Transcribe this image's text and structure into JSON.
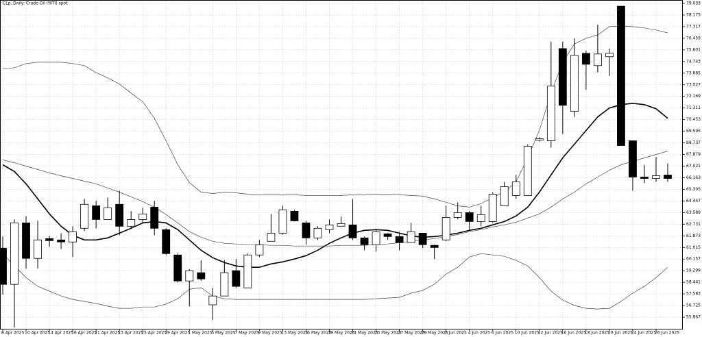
{
  "chart_data": {
    "type": "candlestick",
    "title": "CLp, Daily:  Crude Oil (WTI) spot",
    "categories": [
      "8 Apr 2025",
      null,
      "10 Apr 2025",
      null,
      "14 Apr 2025",
      null,
      "16 Apr 2025",
      null,
      "21 Apr 2025",
      null,
      "23 Apr 2025",
      null,
      "25 Apr 2025",
      null,
      "29 Apr 2025",
      null,
      "1 May 2025",
      null,
      "5 May 2025",
      null,
      "7 May 2025",
      null,
      "9 May 2025",
      null,
      "13 May 2025",
      null,
      "15 May 2025",
      null,
      "19 May 2025",
      null,
      "21 May 2025",
      null,
      "23 May 2025",
      null,
      "27 May 2025",
      null,
      "29 May 2025",
      null,
      "2 Jun 2025",
      null,
      "4 Jun 2025",
      null,
      "6 Jun 2025",
      null,
      "10 Jun 2025",
      null,
      "12 Jun 2025",
      null,
      "16 Jun 2025",
      null,
      "18 Jun 2025",
      null,
      "20 Jun 2025",
      null,
      "24 Jun 2025",
      null,
      "26 Jun 2025",
      null
    ],
    "open": [
      60.96,
      58.29,
      62.83,
      60.21,
      61.67,
      61.57,
      61.42,
      62.43,
      64.09,
      63.08,
      64.2,
      62.58,
      63.08,
      63.99,
      62.33,
      60.46,
      58.54,
      59.15,
      56.78,
      57.43,
      59.3,
      58.03,
      60.46,
      61.47,
      62.07,
      63.69,
      62.83,
      61.72,
      62.33,
      62.58,
      62.68,
      61.72,
      61.22,
      62.02,
      61.82,
      61.37,
      62.07,
      61.17,
      61.57,
      63.23,
      63.59,
      62.93,
      62.93,
      64.09,
      64.85,
      64.85,
      68.94,
      68.89,
      75.7,
      71.06,
      75.35,
      74.44,
      75.1,
      78.83,
      68.89,
      66.21,
      66.11,
      66.36
    ],
    "high": [
      61.82,
      63.08,
      63.33,
      62.98,
      61.87,
      62.07,
      62.58,
      64.6,
      64.45,
      64.7,
      65.2,
      63.69,
      63.94,
      64.45,
      62.43,
      60.56,
      59.4,
      60.06,
      58.03,
      60.06,
      60.16,
      60.56,
      61.57,
      63.49,
      64.09,
      63.79,
      62.98,
      62.58,
      63.08,
      63.29,
      64.6,
      61.82,
      62.28,
      62.07,
      62.17,
      62.83,
      62.07,
      61.22,
      64.09,
      64.35,
      63.69,
      64.09,
      65.1,
      65.86,
      66.37,
      68.64,
      69.14,
      76.21,
      76.21,
      76.46,
      75.55,
      77.47,
      75.7,
      78.83,
      68.89,
      67.12,
      67.68,
      67.22
    ],
    "low": [
      57.53,
      55.11,
      59.45,
      59.45,
      61.07,
      60.91,
      60.31,
      62.23,
      62.43,
      63.08,
      61.92,
      62.43,
      62.83,
      61.92,
      60.46,
      58.44,
      56.67,
      58.54,
      55.67,
      57.43,
      58.03,
      58.03,
      60.31,
      61.47,
      61.97,
      62.93,
      61.22,
      61.57,
      62.07,
      62.58,
      61.57,
      60.81,
      60.71,
      61.57,
      60.81,
      61.37,
      60.97,
      60.16,
      61.47,
      63.08,
      62.33,
      62.58,
      62.83,
      64.09,
      64.6,
      64.85,
      68.84,
      68.38,
      69.39,
      70.65,
      72.67,
      73.94,
      73.68,
      68.54,
      65.2,
      65.76,
      65.86,
      65.86
    ],
    "close": [
      58.29,
      62.83,
      60.21,
      61.57,
      61.52,
      61.42,
      62.17,
      64.2,
      63.08,
      63.94,
      62.58,
      63.08,
      63.49,
      62.43,
      60.56,
      58.54,
      59.3,
      58.69,
      57.43,
      59.15,
      58.14,
      60.46,
      61.22,
      62.07,
      63.79,
      62.98,
      61.72,
      62.43,
      62.68,
      62.78,
      61.72,
      61.22,
      62.17,
      61.82,
      61.37,
      62.17,
      61.22,
      61.01,
      63.23,
      63.59,
      62.93,
      63.44,
      64.95,
      65.51,
      65.86,
      68.49,
      69.04,
      72.93,
      71.51,
      75.2,
      74.54,
      75.3,
      75.35,
      68.54,
      66.21,
      66.11,
      66.31,
      66.11
    ],
    "up_color": "#ffffff",
    "down_color": "#000000",
    "lines": [
      {
        "color": "#000000",
        "width": 1.6,
        "values": [
          67.12,
          66.62,
          65.71,
          64.6,
          63.49,
          62.58,
          61.92,
          61.57,
          61.57,
          61.72,
          62.07,
          62.43,
          62.83,
          62.93,
          62.83,
          62.33,
          61.57,
          60.81,
          60.26,
          59.9,
          59.65,
          59.55,
          59.55,
          59.8,
          59.95,
          60.16,
          60.41,
          60.81,
          61.32,
          61.72,
          62.07,
          62.28,
          62.33,
          62.28,
          62.07,
          61.87,
          61.77,
          61.82,
          61.92,
          62.07,
          62.28,
          62.43,
          62.68,
          62.93,
          63.34,
          63.99,
          65.1,
          66.37,
          67.63,
          68.64,
          69.65,
          70.66,
          71.31,
          71.56,
          71.66,
          71.56,
          71.26,
          70.55
        ]
      },
      {
        "color": "#444444",
        "width": 0.7,
        "values": [
          74.19,
          74.29,
          74.59,
          74.69,
          74.69,
          74.69,
          74.59,
          74.44,
          73.93,
          73.53,
          73.08,
          72.42,
          71.77,
          70.55,
          68.89,
          67.12,
          65.81,
          65.1,
          65.0,
          65.1,
          65.05,
          64.95,
          64.9,
          64.9,
          64.9,
          64.9,
          64.85,
          64.85,
          64.85,
          64.85,
          64.9,
          64.9,
          64.95,
          64.95,
          64.9,
          64.85,
          64.8,
          64.6,
          64.35,
          64.09,
          63.99,
          64.25,
          64.7,
          65.1,
          65.86,
          67.63,
          69.65,
          72.42,
          74.69,
          76.05,
          76.46,
          76.71,
          77.32,
          77.37,
          77.32,
          77.22,
          77.07,
          76.86
        ]
      },
      {
        "color": "#444444",
        "width": 0.7,
        "values": [
          60.56,
          59.65,
          58.79,
          58.14,
          57.79,
          57.43,
          57.18,
          57.03,
          56.88,
          56.68,
          56.52,
          56.52,
          56.62,
          56.62,
          56.83,
          57.23,
          57.94,
          58.04,
          57.43,
          57.23,
          57.18,
          57.18,
          57.18,
          57.18,
          57.18,
          57.18,
          57.18,
          57.18,
          57.18,
          57.18,
          57.18,
          57.18,
          57.23,
          57.28,
          57.33,
          57.64,
          57.84,
          58.29,
          59.05,
          59.55,
          60.31,
          60.56,
          60.46,
          60.36,
          60.06,
          59.65,
          58.79,
          57.79,
          57.13,
          56.73,
          56.52,
          56.47,
          56.52,
          57.03,
          57.64,
          58.14,
          58.79,
          59.55
        ]
      },
      {
        "color": "#444444",
        "width": 0.7,
        "values": [
          67.48,
          67.27,
          67.02,
          66.77,
          66.52,
          66.31,
          66.11,
          65.91,
          65.71,
          65.4,
          65.1,
          64.75,
          64.4,
          63.99,
          63.44,
          62.83,
          62.18,
          61.77,
          61.47,
          61.32,
          61.27,
          61.22,
          61.22,
          61.17,
          61.17,
          61.12,
          61.12,
          61.12,
          61.12,
          61.17,
          61.17,
          61.17,
          61.22,
          61.27,
          61.37,
          61.47,
          61.57,
          61.67,
          61.82,
          61.97,
          62.18,
          62.33,
          62.53,
          62.68,
          62.88,
          63.19,
          63.49,
          63.99,
          64.6,
          65.1,
          65.71,
          66.21,
          66.72,
          67.12,
          67.37,
          67.63,
          67.88,
          68.13
        ]
      }
    ],
    "ylim": [
      55.01,
      79.235
    ],
    "yticks": [
      79.033,
      78.175,
      77.317,
      76.459,
      75.601,
      74.743,
      73.885,
      73.027,
      72.169,
      71.311,
      70.453,
      69.595,
      68.737,
      67.879,
      67.021,
      66.163,
      65.305,
      64.447,
      63.589,
      62.731,
      61.873,
      61.015,
      60.157,
      59.299,
      58.441,
      57.583,
      56.725,
      55.867
    ],
    "grid": true
  }
}
